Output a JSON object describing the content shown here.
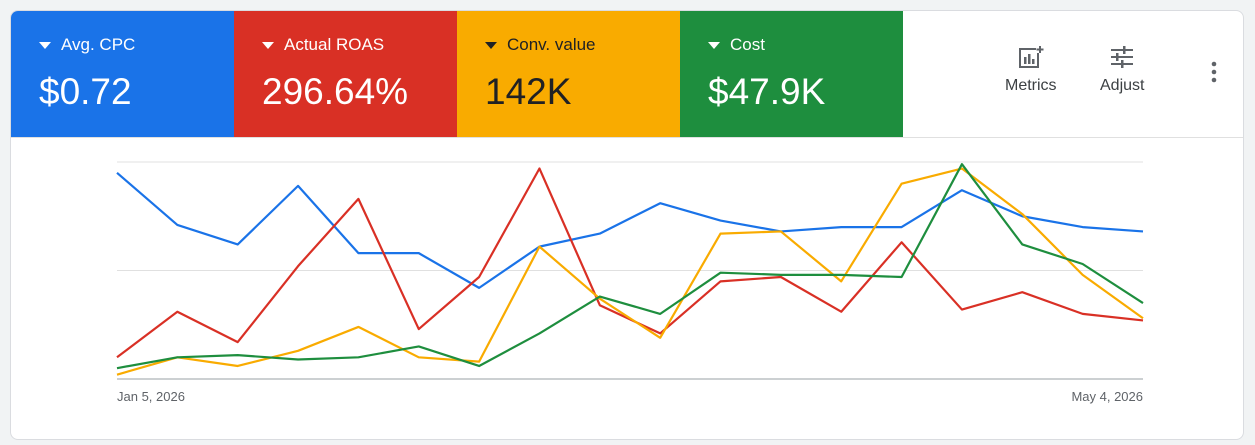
{
  "scorecards": [
    {
      "label": "Avg. CPC",
      "value": "$0.72",
      "color": "#1a73e8",
      "text_color": "#ffffff"
    },
    {
      "label": "Actual ROAS",
      "value": "296.64%",
      "color": "#d93025",
      "text_color": "#ffffff"
    },
    {
      "label": "Conv. value",
      "value": "142K",
      "color": "#f9ab00",
      "text_color": "#202124"
    },
    {
      "label": "Cost",
      "value": "$47.9K",
      "color": "#1e8e3e",
      "text_color": "#ffffff"
    }
  ],
  "toolbar": {
    "metrics_label": "Metrics",
    "adjust_label": "Adjust",
    "metrics_icon": "metrics-chart-icon",
    "adjust_icon": "tune-sliders-icon",
    "more_icon": "more-vert-icon"
  },
  "chart_data": {
    "type": "line",
    "title": "",
    "xlabel": "",
    "ylabel": "",
    "ylim": [
      0,
      100
    ],
    "grid": true,
    "x_tick_labels": [
      "Jan 5, 2026",
      "May 4, 2026"
    ],
    "points": 18,
    "series": [
      {
        "color": "#1a73e8",
        "values": [
          95,
          71,
          62,
          89,
          58,
          58,
          42,
          61,
          67,
          81,
          73,
          68,
          70,
          70,
          87,
          75,
          70,
          68
        ]
      },
      {
        "color": "#d93025",
        "values": [
          10,
          31,
          17,
          52,
          83,
          23,
          47,
          97,
          34,
          21,
          45,
          47,
          31,
          63,
          32,
          40,
          30,
          27
        ]
      },
      {
        "color": "#f9ab00",
        "values": [
          2,
          10,
          6,
          13,
          24,
          10,
          8,
          61,
          37,
          19,
          67,
          68,
          45,
          90,
          97,
          76,
          48,
          28
        ]
      },
      {
        "color": "#1e8e3e",
        "values": [
          5,
          10,
          11,
          9,
          10,
          15,
          6,
          21,
          38,
          30,
          49,
          48,
          48,
          47,
          99,
          62,
          53,
          35
        ]
      }
    ]
  }
}
